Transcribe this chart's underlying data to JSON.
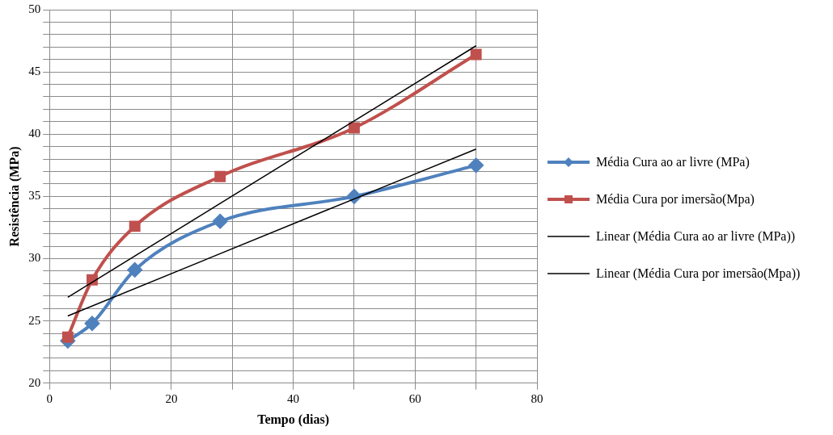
{
  "chart_data": {
    "type": "line",
    "xlabel": "Tempo (dias)",
    "ylabel": "Resistência (MPa)",
    "xlim": [
      0,
      80
    ],
    "ylim": [
      20,
      50
    ],
    "xticks": [
      0,
      {
        "value": 10,
        "label": null
      },
      20,
      {
        "value": 30,
        "label": null
      },
      40,
      {
        "value": 50,
        "label": null
      },
      60,
      {
        "value": 70,
        "label": null
      },
      80
    ],
    "yticks": [
      20,
      {
        "value": 21,
        "label": null
      },
      {
        "value": 22,
        "label": null
      },
      {
        "value": 23,
        "label": null
      },
      {
        "value": 24,
        "label": null
      },
      25,
      {
        "value": 26,
        "label": null
      },
      {
        "value": 27,
        "label": null
      },
      {
        "value": 28,
        "label": null
      },
      {
        "value": 29,
        "label": null
      },
      30,
      {
        "value": 31,
        "label": null
      },
      {
        "value": 32,
        "label": null
      },
      {
        "value": 33,
        "label": null
      },
      {
        "value": 34,
        "label": null
      },
      35,
      {
        "value": 36,
        "label": null
      },
      {
        "value": 37,
        "label": null
      },
      {
        "value": 38,
        "label": null
      },
      {
        "value": 39,
        "label": null
      },
      40,
      {
        "value": 41,
        "label": null
      },
      {
        "value": 42,
        "label": null
      },
      {
        "value": 43,
        "label": null
      },
      {
        "value": 44,
        "label": null
      },
      45,
      {
        "value": 46,
        "label": null
      },
      {
        "value": 47,
        "label": null
      },
      {
        "value": 48,
        "label": null
      },
      {
        "value": 49,
        "label": null
      },
      50
    ],
    "grid": true,
    "legend": "right",
    "series": [
      {
        "name": "Média Cura ao ar livre (MPa)",
        "color": "#4f81bd",
        "marker": "diamond",
        "x": [
          3,
          7,
          14,
          28,
          50,
          70
        ],
        "values": [
          23.4,
          24.8,
          29.1,
          33.0,
          35.0,
          37.5
        ]
      },
      {
        "name": "Média Cura por imersão(Mpa)",
        "color": "#c0504d",
        "marker": "square",
        "x": [
          3,
          7,
          14,
          28,
          50,
          70
        ],
        "values": [
          23.7,
          28.3,
          32.6,
          36.6,
          40.5,
          46.4
        ]
      },
      {
        "name": "Linear (Média Cura ao ar livre (MPa))",
        "color": "#000000",
        "marker": "none",
        "x": [
          3,
          70
        ],
        "values": [
          25.4,
          38.8
        ]
      },
      {
        "name": "Linear (Média Cura por imersão(Mpa))",
        "color": "#000000",
        "marker": "none",
        "x": [
          3,
          70
        ],
        "values": [
          26.9,
          47.1
        ]
      }
    ]
  }
}
